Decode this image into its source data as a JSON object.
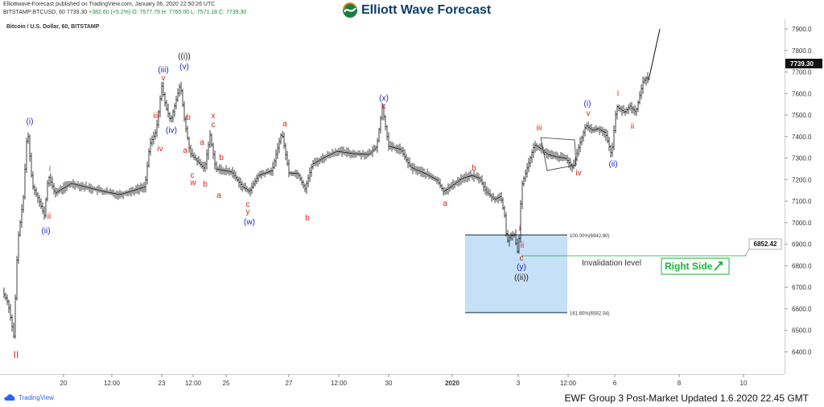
{
  "header": {
    "line1": "Elliottwave-Forecast published on TradingView.com, January 06, 2020 22:50:26 UTC",
    "symbol": "BITSTAMP:BTCUSD, 60",
    "price": "7739.30",
    "change": "+382.60 (+5.2%)",
    "ohlc": "O: 7577.79  H: 7765.00  L: 7571.18  C: 7739.30"
  },
  "brand": {
    "name": "Elliott Wave Forecast"
  },
  "chart_title": "Bitcoin / U.S. Dollar, 60, BITSTAMP",
  "footer": {
    "tradingview": "TradingView",
    "update_text": "EWF Group 3 Post-Market Updated 1.6.2020 22.45 GMT"
  },
  "colors": {
    "blue": "#2323c8",
    "red": "#d8261d",
    "green": "#19b23a",
    "box": "#c5e0f7",
    "box_line": "#506a80",
    "bars": "#111111"
  },
  "chart_data": {
    "type": "ohlc",
    "ylim": [
      6250,
      7980
    ],
    "yticks": [
      6400,
      6500,
      6600,
      6700,
      6800,
      6900,
      7000,
      7100,
      7200,
      7300,
      7400,
      7500,
      7600,
      7700,
      7800,
      7900
    ],
    "xticks": [
      "20",
      "12:00",
      "23",
      "12:00",
      "25",
      "27",
      "12:00",
      "30",
      "2020",
      "3",
      "12:00",
      "6",
      "8",
      "10"
    ],
    "last_price": "7739.30",
    "invalidation_price": "6852.42",
    "invalidation_label": "Invalidation level",
    "box": {
      "top_label": "100.00%(6942.90)",
      "bottom_label": "161.80%(6582.04)",
      "top": 6942.9,
      "bottom": 6582.04
    },
    "right_side_label": "Right Side",
    "labels": [
      {
        "t": "II",
        "c": "red"
      },
      {
        "t": "(i)",
        "c": "blue"
      },
      {
        "t": "(ii)",
        "c": "blue"
      },
      {
        "t": "i",
        "c": "red"
      },
      {
        "t": "ii",
        "c": "red"
      },
      {
        "t": "iii",
        "c": "red"
      },
      {
        "t": "iv",
        "c": "red"
      },
      {
        "t": "(iii)",
        "c": "blue"
      },
      {
        "t": "v",
        "c": "red"
      },
      {
        "t": "(iv)",
        "c": "blue"
      },
      {
        "t": "((i))",
        "c": "dark"
      },
      {
        "t": "(v)",
        "c": "blue"
      },
      {
        "t": "b",
        "c": "red"
      },
      {
        "t": "a",
        "c": "red"
      },
      {
        "t": "c",
        "c": "red"
      },
      {
        "t": "w",
        "c": "red"
      },
      {
        "t": "b",
        "c": "red"
      },
      {
        "t": "x",
        "c": "red"
      },
      {
        "t": "c",
        "c": "red"
      },
      {
        "t": "a",
        "c": "red"
      },
      {
        "t": "b",
        "c": "red"
      },
      {
        "t": "a",
        "c": "red"
      },
      {
        "t": "c",
        "c": "red"
      },
      {
        "t": "y",
        "c": "red"
      },
      {
        "t": "(w)",
        "c": "blue"
      },
      {
        "t": "a",
        "c": "red"
      },
      {
        "t": "b",
        "c": "red"
      },
      {
        "t": "(x)",
        "c": "blue"
      },
      {
        "t": "c",
        "c": "red"
      },
      {
        "t": "a",
        "c": "red"
      },
      {
        "t": "b",
        "c": "red"
      },
      {
        "t": "i",
        "c": "red"
      },
      {
        "t": "ii",
        "c": "red"
      },
      {
        "t": "c",
        "c": "red"
      },
      {
        "t": "(y)",
        "c": "blue"
      },
      {
        "t": "((ii))",
        "c": "dark"
      },
      {
        "t": "iii",
        "c": "red"
      },
      {
        "t": "iv",
        "c": "red"
      },
      {
        "t": "(i)",
        "c": "blue"
      },
      {
        "t": "v",
        "c": "red"
      },
      {
        "t": "(ii)",
        "c": "blue"
      },
      {
        "t": "i",
        "c": "red"
      },
      {
        "t": "ii",
        "c": "red"
      }
    ]
  }
}
